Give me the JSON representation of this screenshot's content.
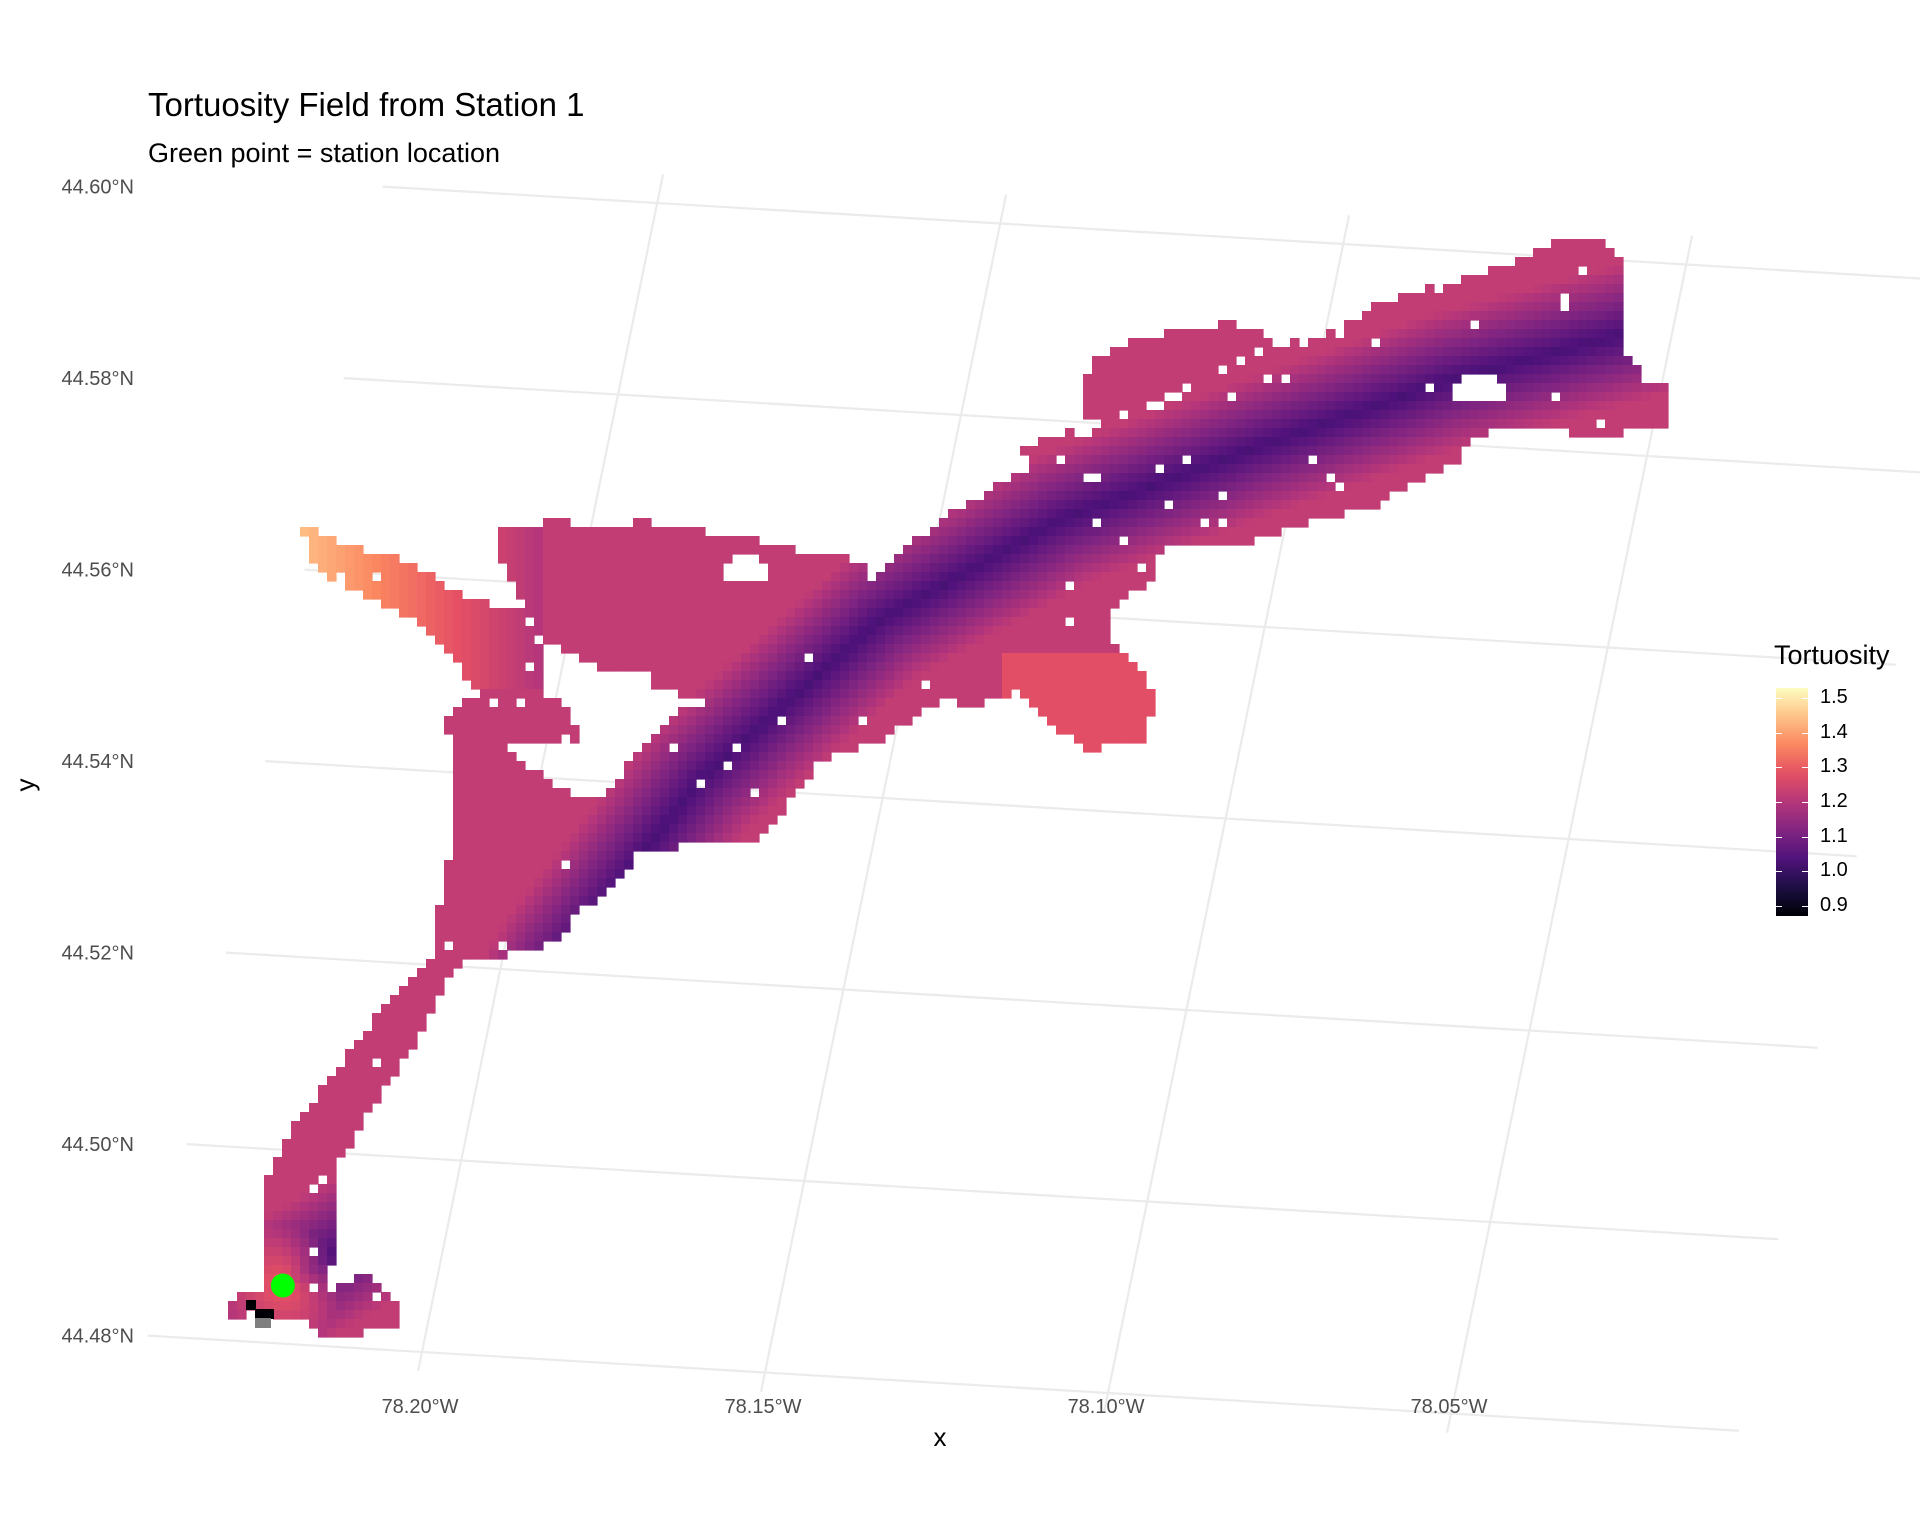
{
  "chart_data": {
    "type": "heatmap",
    "title": "Tortuosity Field from Station 1",
    "subtitle": "Green point = station location",
    "xlabel": "x",
    "ylabel": "y",
    "x_ticks": [
      "78.20°W",
      "78.15°W",
      "78.10°W",
      "78.05°W"
    ],
    "y_ticks": [
      "44.60°N",
      "44.58°N",
      "44.56°N",
      "44.54°N",
      "44.52°N",
      "44.50°N",
      "44.48°N"
    ],
    "xlim": [
      -78.24,
      -78.01
    ],
    "ylim": [
      44.478,
      44.602
    ],
    "grid": true,
    "colormap": "magma",
    "legend": {
      "title": "Tortuosity",
      "placement": "right",
      "range": [
        0.9,
        1.5
      ],
      "labels": [
        "1.5",
        "1.4",
        "1.3",
        "1.2",
        "1.1",
        "1.0",
        "0.9"
      ]
    },
    "station": {
      "lon": -78.222,
      "lat": 44.486,
      "color": "#00ff00"
    },
    "field_notes": "Tortuosity is lowest (~1.0) along the main lake axis from the station and rises toward side bays; the northwest arm reaches ~1.4."
  }
}
